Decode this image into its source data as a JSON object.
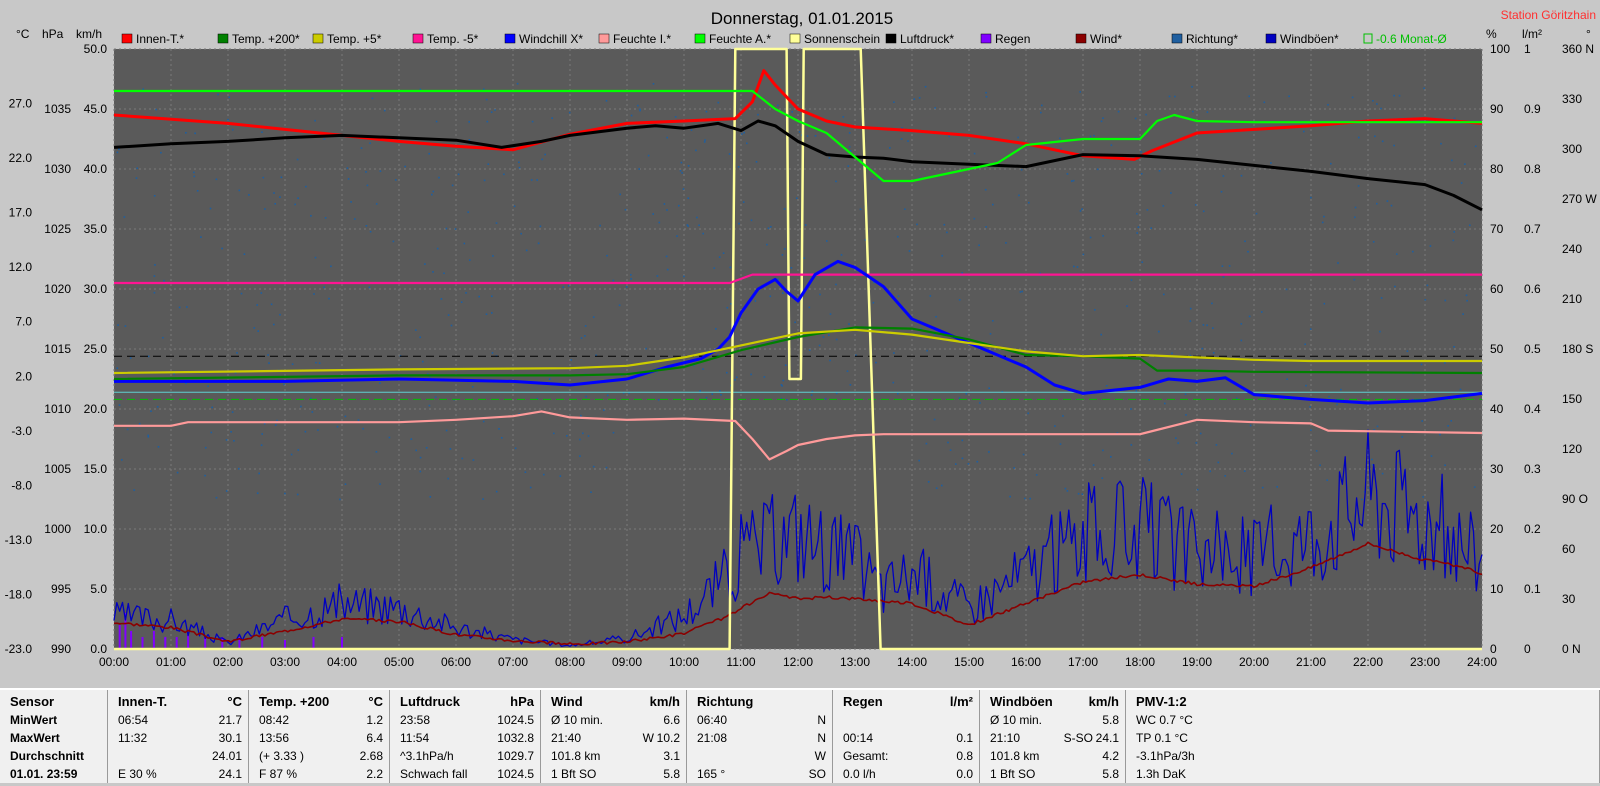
{
  "title": "Donnerstag, 01.01.2015",
  "station": "Station Göritzhain",
  "colors": {
    "background": "#5a5a5a",
    "innen": "#ff0000",
    "temp200": "#008000",
    "temp5": "#cccc00",
    "tempm5": "#ff1493",
    "windchill": "#0000ff",
    "feuchteI": "#ff9a9a",
    "feuchteA": "#00ff00",
    "sonne": "#ffff99",
    "luftdruck": "#000000",
    "regen": "#8000ff",
    "wind": "#8b0000",
    "richtung": "#1f5fa0",
    "boeen": "#0000c0",
    "monat": "#00c000"
  },
  "units": {
    "celsius": "°C",
    "hpa": "hPa",
    "kmh": "km/h",
    "percent": "%",
    "lm2": "l/m²",
    "deg": "°"
  },
  "chart_data": {
    "type": "line",
    "x_ticks": [
      "00:00",
      "01:00",
      "02:00",
      "03:00",
      "04:00",
      "05:00",
      "06:00",
      "07:00",
      "08:00",
      "09:00",
      "10:00",
      "11:00",
      "12:00",
      "13:00",
      "14:00",
      "15:00",
      "16:00",
      "17:00",
      "18:00",
      "19:00",
      "20:00",
      "21:00",
      "22:00",
      "23:00",
      "24:00"
    ],
    "xlim": [
      0,
      24
    ],
    "axes": {
      "temp": {
        "ticks": [
          "27.0",
          "22.0",
          "17.0",
          "12.0",
          "7.0",
          "2.0",
          "-3.0",
          "-8.0",
          "-13.0",
          "-18.0",
          "-23.0"
        ],
        "ylim": [
          -23,
          32
        ]
      },
      "hpa": {
        "ticks": [
          "1035",
          "1030",
          "1025",
          "1020",
          "1015",
          "1010",
          "1005",
          "1000",
          "995",
          "990"
        ],
        "ylim": [
          990,
          1040
        ]
      },
      "kmh": {
        "ticks": [
          "50.0",
          "45.0",
          "40.0",
          "35.0",
          "30.0",
          "25.0",
          "20.0",
          "15.0",
          "10.0",
          "5.0",
          "0.0"
        ],
        "ylim": [
          0,
          50
        ]
      },
      "percent": {
        "ticks": [
          "100",
          "90",
          "80",
          "70",
          "60",
          "50",
          "40",
          "30",
          "20",
          "10",
          "0"
        ],
        "ylim": [
          0,
          100
        ]
      },
      "lm2": {
        "ticks": [
          "1",
          "0.9",
          "0.8",
          "0.7",
          "0.6",
          "0.5",
          "0.4",
          "0.3",
          "0.2",
          "0.1",
          "0"
        ],
        "ylim": [
          0,
          1
        ]
      },
      "deg": {
        "ticks": [
          "360 N",
          "330",
          "300",
          "270 W",
          "240",
          "210",
          "180 S",
          "150",
          "120",
          "90 O",
          "60",
          "30",
          "0 N"
        ],
        "ylim": [
          0,
          360
        ]
      }
    },
    "legend": [
      "Innen-T.*",
      "Temp. +200*",
      "Temp. +5*",
      "Temp. -5*",
      "Windchill X*",
      "Feuchte I.*",
      "Feuchte A.*",
      "Sonnenschein",
      "Luftdruck*",
      "Regen",
      "Wind*",
      "Richtung*",
      "Windböen*",
      "-0.6 Monat-Ø"
    ],
    "series": [
      {
        "key": "innen",
        "name": "Innen-T.*",
        "axis": "kmh",
        "x": [
          0,
          2,
          4,
          5,
          6,
          7,
          8,
          9,
          10,
          10.9,
          11.2,
          11.4,
          11.6,
          12,
          12.5,
          13,
          14,
          15,
          16,
          17,
          17.9,
          18.2,
          19,
          20,
          21,
          22,
          23,
          24
        ],
        "y": [
          44.5,
          43.8,
          42.8,
          42.3,
          41.9,
          41.6,
          42.9,
          43.8,
          44,
          44.2,
          45.6,
          48.2,
          47,
          45,
          44,
          43.5,
          43.2,
          42.8,
          42.1,
          41.1,
          40.8,
          41.5,
          43,
          43.3,
          43.6,
          44,
          44.2,
          43.8
        ]
      },
      {
        "key": "luftdruck",
        "name": "Luftdruck*",
        "axis": "kmh",
        "x": [
          0,
          1,
          2,
          3,
          4,
          5,
          6,
          6.8,
          7.5,
          8,
          9,
          9.5,
          10,
          10.6,
          11,
          11.3,
          11.6,
          12,
          12.5,
          13,
          13.5,
          14,
          15,
          16,
          17,
          18,
          19,
          20,
          21,
          22,
          23,
          23.5,
          24
        ],
        "y": [
          41.8,
          42.1,
          42.3,
          42.6,
          42.8,
          42.6,
          42.4,
          41.8,
          42.3,
          42.8,
          43.4,
          43.6,
          43.4,
          43.8,
          43.2,
          44,
          43.6,
          42.3,
          41.2,
          41,
          40.9,
          40.6,
          40.4,
          40.2,
          41.2,
          41.1,
          40.8,
          40.3,
          39.8,
          39.2,
          38.7,
          37.8,
          36.6
        ]
      },
      {
        "key": "feuchteA",
        "name": "Feuchte A.*",
        "axis": "percent",
        "x": [
          0,
          5,
          10,
          11.2,
          11.6,
          12,
          12.5,
          13,
          13.5,
          14,
          15,
          15.5,
          16,
          17,
          18,
          18.3,
          18.6,
          19,
          20,
          21,
          24
        ],
        "y": [
          93,
          93,
          93,
          93,
          90,
          88,
          86,
          82,
          78,
          78,
          80,
          81,
          84,
          85,
          85,
          88,
          89,
          88,
          87.8,
          87.8,
          87.8
        ]
      },
      {
        "key": "tempm5",
        "name": "Temp. -5*",
        "axis": "kmh",
        "x": [
          0,
          10.6,
          10.8,
          11.2,
          24
        ],
        "y": [
          30.5,
          30.5,
          30.5,
          31.2,
          31.2
        ]
      },
      {
        "key": "windchill",
        "name": "Windchill X*",
        "axis": "kmh",
        "x": [
          0,
          3,
          5,
          7,
          8,
          9,
          9.7,
          10.3,
          10.6,
          10.8,
          11,
          11.3,
          11.6,
          11.8,
          12,
          12.3,
          12.7,
          13,
          13.5,
          14,
          15,
          16,
          16.5,
          17,
          18,
          18.5,
          19,
          19.5,
          20,
          21,
          22,
          23,
          24
        ],
        "y": [
          22.3,
          22.3,
          22.5,
          22.3,
          22,
          22.5,
          23.5,
          24.2,
          25,
          26,
          28,
          30,
          30.8,
          29.8,
          29,
          31.2,
          32.3,
          31.8,
          30.2,
          27.5,
          25.5,
          23.5,
          22,
          21.3,
          21.8,
          22.5,
          22.3,
          22.6,
          21.2,
          20.8,
          20.5,
          20.7,
          21.3
        ]
      },
      {
        "key": "temp200",
        "name": "Temp. +200*",
        "axis": "kmh",
        "x": [
          0,
          5,
          8,
          9,
          10,
          11,
          12,
          13,
          14,
          15,
          16,
          17,
          18,
          18.3,
          19,
          20,
          24
        ],
        "y": [
          22.5,
          22.8,
          22.8,
          22.9,
          23.5,
          24.9,
          26,
          26.8,
          26.7,
          25.8,
          24.5,
          24.4,
          24.2,
          23.2,
          23.2,
          23.1,
          23
        ]
      },
      {
        "key": "temp5",
        "name": "Temp. +5*",
        "axis": "kmh",
        "x": [
          0,
          5,
          8,
          9,
          10,
          11,
          12,
          13,
          14,
          15,
          16,
          17,
          18,
          19,
          20,
          21,
          24
        ],
        "y": [
          23,
          23.3,
          23.4,
          23.6,
          24.3,
          25.3,
          26.3,
          26.6,
          26.2,
          25.5,
          24.8,
          24.4,
          24.5,
          24.3,
          24.1,
          24,
          24
        ]
      },
      {
        "key": "feuchteI",
        "name": "Feuchte I.*",
        "axis": "kmh",
        "x": [
          0,
          1,
          1.3,
          5,
          6,
          7,
          7.5,
          8,
          9,
          10,
          10.9,
          11.2,
          11.5,
          11.8,
          12,
          12.5,
          13,
          13.5,
          15,
          18,
          19,
          20,
          21,
          21.3,
          24
        ],
        "y": [
          18.6,
          18.6,
          18.9,
          18.9,
          19.1,
          19.4,
          19.8,
          19.3,
          19.1,
          19.2,
          19,
          17.5,
          15.8,
          16.5,
          17,
          17.5,
          17.8,
          17.9,
          17.9,
          17.9,
          19.1,
          18.9,
          18.8,
          18.2,
          18
        ]
      }
    ],
    "sonnenschein": {
      "axis": "percent",
      "x": [
        0,
        10.8,
        10.9,
        11.35,
        11.8,
        11.85,
        12.05,
        12.1,
        13.1,
        13.45,
        13.5,
        24
      ],
      "y": [
        0,
        0,
        100,
        100,
        100,
        45,
        45,
        100,
        100,
        0,
        0,
        0
      ]
    },
    "wind_hours": [
      0,
      1,
      2,
      3,
      4,
      5,
      6,
      7,
      8,
      9,
      10,
      10.8,
      11,
      11.5,
      12,
      12.5,
      13,
      13.5,
      14,
      15,
      16,
      17,
      18,
      19,
      20,
      21,
      22,
      23,
      23.5,
      24
    ],
    "wind_values": [
      2.2,
      1.8,
      0.6,
      1.5,
      2.5,
      2.3,
      1.2,
      0.7,
      0.4,
      0.6,
      1.3,
      2.8,
      3.4,
      4.6,
      4.2,
      4.3,
      4.2,
      4,
      3.8,
      2,
      3.8,
      5.6,
      6.2,
      5.4,
      5.2,
      6.8,
      8.8,
      7.4,
      7,
      6.3
    ],
    "boeen_values": [
      2.8,
      2.4,
      0.5,
      2.5,
      3.8,
      3.5,
      1.8,
      0.8,
      0.3,
      0.9,
      2.8,
      6.4,
      8,
      9,
      9.8,
      8.5,
      7.5,
      5,
      6.5,
      3.5,
      6.5,
      9.5,
      10,
      8,
      7.8,
      9.4,
      13.2,
      11,
      9.5,
      7.4
    ],
    "richtung": {
      "axis": "deg",
      "note": "scatter of wind direction readings"
    },
    "regen": {
      "axis": "lm2",
      "x": [
        0.1,
        0.2,
        0.3,
        0.5,
        0.7,
        0.9,
        1.1,
        1.3,
        1.6,
        1.9,
        2.2,
        2.6,
        3,
        3.5,
        4
      ],
      "y": [
        0.04,
        0.06,
        0.03,
        0.02,
        0.03,
        0.02,
        0.02,
        0.025,
        0.02,
        0.02,
        0.02,
        0.02,
        0.015,
        0.02,
        0.02
      ]
    },
    "reference_lines": [
      {
        "name": "dashed",
        "axis": "kmh",
        "y": 24.4,
        "style": "dashed",
        "color": "#000000"
      },
      {
        "name": "-0.6 Monat-Ø",
        "axis": "kmh",
        "y": 20.8,
        "style": "dashed",
        "color": "#00c000"
      },
      {
        "name": "cyan",
        "axis": "kmh",
        "y": 21.4,
        "style": "solid",
        "color": "#5fd0d0"
      }
    ]
  },
  "stats": [
    {
      "title": "Sensor",
      "unit": "",
      "rows": [
        [
          "MinWert",
          "",
          ""
        ],
        [
          "MaxWert",
          "",
          ""
        ],
        [
          "Durchschnitt",
          "",
          ""
        ],
        [
          "01.01. 23:59",
          "",
          ""
        ]
      ]
    },
    {
      "title": "Innen-T.",
      "unit": "°C",
      "rows": [
        [
          "06:54",
          "",
          "21.7"
        ],
        [
          "11:32",
          "",
          "30.1"
        ],
        [
          "",
          "",
          "24.01"
        ],
        [
          "E 30 %",
          "",
          "24.1"
        ]
      ]
    },
    {
      "title": "Temp. +200",
      "unit": "°C",
      "rows": [
        [
          "08:42",
          "",
          "1.2"
        ],
        [
          "13:56",
          "",
          "6.4"
        ],
        [
          "(+ 3.33 )",
          "",
          "2.68"
        ],
        [
          "F 87 %",
          "",
          "2.2"
        ]
      ]
    },
    {
      "title": "Luftdruck",
      "unit": "hPa",
      "rows": [
        [
          "23:58",
          "",
          "1024.5"
        ],
        [
          "11:54",
          "",
          "1032.8"
        ],
        [
          "^3.1hPa/h",
          "",
          "1029.7"
        ],
        [
          "Schwach fall",
          "",
          "1024.5"
        ]
      ]
    },
    {
      "title": "Wind",
      "unit": "km/h",
      "rows": [
        [
          "Ø 10 min.",
          "",
          "6.6"
        ],
        [
          "21:40",
          "W",
          "10.2"
        ],
        [
          "101.8 km",
          "",
          "3.1"
        ],
        [
          "1 Bft SO",
          "",
          "5.8"
        ]
      ]
    },
    {
      "title": "Richtung",
      "unit": "",
      "rows": [
        [
          "06:40",
          "",
          "N"
        ],
        [
          "21:08",
          "",
          "N"
        ],
        [
          "",
          "",
          "W"
        ],
        [
          "165 °",
          "",
          "SO"
        ]
      ]
    },
    {
      "title": "Regen",
      "unit": "l/m²",
      "rows": [
        [
          "",
          "",
          ""
        ],
        [
          "00:14",
          "",
          "0.1"
        ],
        [
          "Gesamt:",
          "",
          "0.8"
        ],
        [
          "0.0 l/h",
          "",
          "0.0"
        ]
      ]
    },
    {
      "title": "Windböen",
      "unit": "km/h",
      "rows": [
        [
          "Ø 10 min.",
          "",
          "5.8"
        ],
        [
          "21:10",
          "S-SO",
          "24.1"
        ],
        [
          "101.8 km",
          "",
          "4.2"
        ],
        [
          "1 Bft SO",
          "",
          "5.8"
        ]
      ]
    },
    {
      "title": "PMV-1:2",
      "unit": "",
      "rows": [
        [
          "WC 0.7 °C",
          "",
          ""
        ],
        [
          "TP 0.1 °C",
          "",
          ""
        ],
        [
          "-3.1hPa/3h",
          "",
          ""
        ],
        [
          "1.3h DaK",
          "",
          ""
        ]
      ]
    }
  ]
}
